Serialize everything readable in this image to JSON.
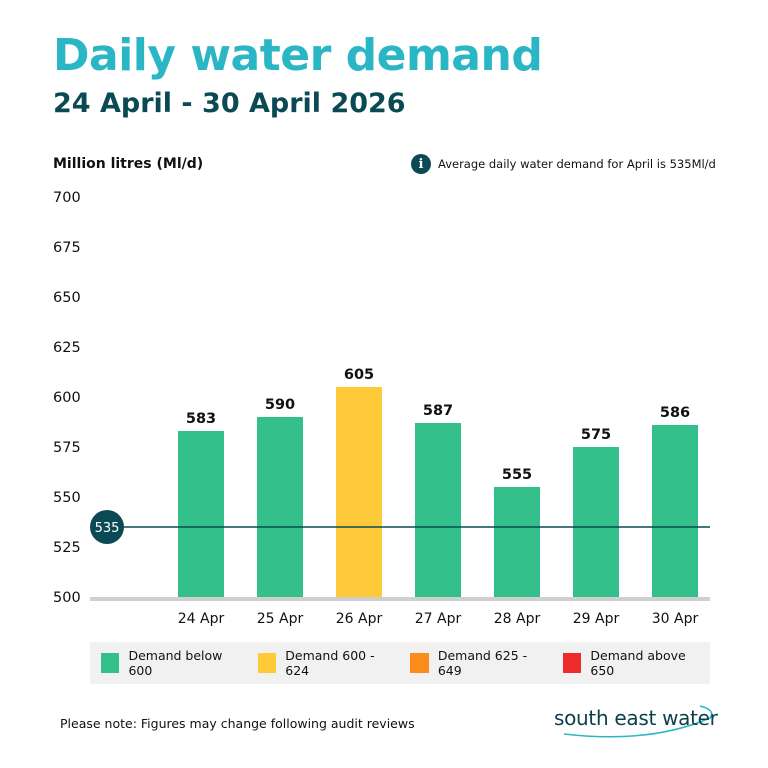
{
  "title": "Daily water demand",
  "subtitle": "24 April - 30 April 2026",
  "note": {
    "text": "Average daily water demand for April is 535Ml/d",
    "icon": "info-icon"
  },
  "footnote": "Please note: Figures may change following audit reviews",
  "logo_text": "south east water",
  "legend": [
    {
      "label": "Demand below 600",
      "color": "#33c08a"
    },
    {
      "label": "Demand 600 - 624",
      "color": "#ffca3a"
    },
    {
      "label": "Demand 625 - 649",
      "color": "#fb8c1c"
    },
    {
      "label": "Demand above 650",
      "color": "#ef2c2c"
    }
  ],
  "chart_data": {
    "type": "bar",
    "title": "Daily water demand",
    "subtitle": "24 April - 30 April 2026",
    "ylabel": "Million litres (Ml/d)",
    "xlabel": "",
    "categories": [
      "24 Apr",
      "25 Apr",
      "26 Apr",
      "27 Apr",
      "28 Apr",
      "29 Apr",
      "30 Apr"
    ],
    "values": [
      583,
      590,
      605,
      587,
      555,
      575,
      586
    ],
    "colors": [
      "#33c08a",
      "#33c08a",
      "#ffca3a",
      "#33c08a",
      "#33c08a",
      "#33c08a",
      "#33c08a"
    ],
    "ylim": [
      500,
      700
    ],
    "yticks": [
      500,
      525,
      550,
      575,
      600,
      625,
      650,
      675,
      700
    ],
    "reference_line": {
      "value": 535,
      "label": "535",
      "color": "#0b4a55"
    },
    "grid": false
  }
}
